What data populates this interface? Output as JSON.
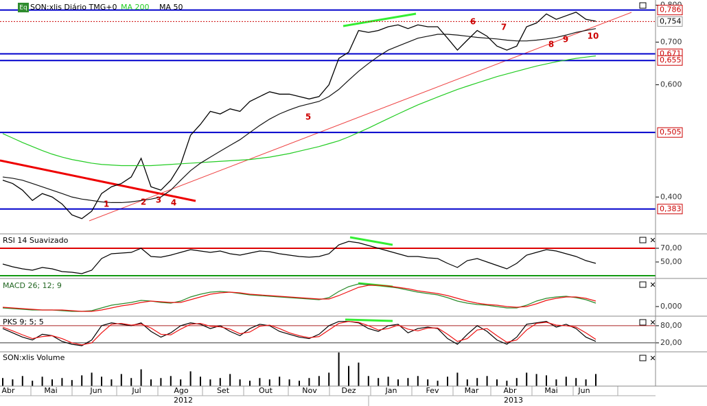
{
  "chart_data": [
    {
      "type": "line",
      "title": "SON:xlis Diário TMG+0",
      "log_scale": true,
      "ylim": [
        0.351,
        0.815
      ],
      "yticks": [
        {
          "value": 0.4,
          "label": "0,400"
        },
        {
          "value": 0.6,
          "label": "0,600"
        },
        {
          "value": 0.7,
          "label": "0,700"
        },
        {
          "value": 0.8,
          "label": "0,800"
        }
      ],
      "levels": [
        {
          "value": 0.786,
          "label": "0,786",
          "color": "#0000cc"
        },
        {
          "value": 0.754,
          "label": "0,754",
          "color": "#cc0000"
        },
        {
          "value": 0.671,
          "label": "0,671",
          "color": "#0000cc"
        },
        {
          "value": 0.655,
          "label": "0,655",
          "color": "#0000cc"
        },
        {
          "value": 0.505,
          "label": "0,505",
          "color": "#0000cc"
        },
        {
          "value": 0.383,
          "label": "0,383",
          "color": "#0000cc"
        }
      ],
      "annotations": [
        "1",
        "2",
        "3",
        "4",
        "5",
        "6",
        "7",
        "8",
        "9",
        "10"
      ],
      "series": [
        {
          "color": "#000000",
          "values": [
            0.425,
            0.42,
            0.41,
            0.395,
            0.405,
            0.4,
            0.39,
            0.375,
            0.37,
            0.38,
            0.405,
            0.415,
            0.42,
            0.43,
            0.46,
            0.415,
            0.41,
            0.425,
            0.45,
            0.5,
            0.52,
            0.545,
            0.54,
            0.55,
            0.545,
            0.565,
            0.575,
            0.585,
            0.58,
            0.58,
            0.575,
            0.57,
            0.575,
            0.6,
            0.66,
            0.675,
            0.73,
            0.725,
            0.73,
            0.74,
            0.745,
            0.735,
            0.745,
            0.74,
            0.74,
            0.71,
            0.68,
            0.705,
            0.73,
            0.715,
            0.69,
            0.68,
            0.69,
            0.74,
            0.75,
            0.775,
            0.76,
            0.77,
            0.78,
            0.76,
            0.755
          ]
        },
        {
          "name": "MA 200",
          "color": "#22cc22",
          "values": [
            0.503,
            0.495,
            0.487,
            0.48,
            0.473,
            0.467,
            0.462,
            0.458,
            0.455,
            0.452,
            0.45,
            0.449,
            0.448,
            0.448,
            0.448,
            0.448,
            0.449,
            0.45,
            0.451,
            0.452,
            0.453,
            0.454,
            0.455,
            0.456,
            0.457,
            0.458,
            0.46,
            0.462,
            0.465,
            0.468,
            0.472,
            0.476,
            0.48,
            0.485,
            0.49,
            0.497,
            0.505,
            0.513,
            0.522,
            0.531,
            0.54,
            0.549,
            0.558,
            0.566,
            0.574,
            0.582,
            0.59,
            0.597,
            0.604,
            0.611,
            0.618,
            0.624,
            0.63,
            0.636,
            0.642,
            0.647,
            0.652,
            0.656,
            0.66,
            0.663,
            0.666
          ]
        },
        {
          "name": "MA 50",
          "color": "#111111",
          "values": [
            0.43,
            0.428,
            0.425,
            0.42,
            0.415,
            0.41,
            0.405,
            0.4,
            0.397,
            0.395,
            0.393,
            0.392,
            0.392,
            0.393,
            0.395,
            0.397,
            0.4,
            0.41,
            0.425,
            0.44,
            0.452,
            0.462,
            0.472,
            0.482,
            0.492,
            0.505,
            0.518,
            0.53,
            0.54,
            0.548,
            0.555,
            0.56,
            0.565,
            0.575,
            0.59,
            0.61,
            0.63,
            0.648,
            0.665,
            0.68,
            0.69,
            0.7,
            0.71,
            0.715,
            0.72,
            0.72,
            0.718,
            0.715,
            0.712,
            0.71,
            0.708,
            0.705,
            0.703,
            0.703,
            0.705,
            0.708,
            0.712,
            0.718,
            0.725,
            0.73,
            0.735
          ]
        }
      ]
    },
    {
      "type": "line",
      "title": "RSI 14 Suavizado",
      "ylim": [
        27,
        90
      ],
      "yticks": [
        {
          "value": 70,
          "label": "70,00"
        },
        {
          "value": 50,
          "label": "50,00"
        }
      ],
      "levels": [
        {
          "value": 70,
          "color": "#dd0000"
        },
        {
          "value": 30,
          "color": "#119911"
        }
      ],
      "series": [
        {
          "color": "#000000",
          "values": [
            47,
            43,
            40,
            38,
            42,
            40,
            36,
            35,
            33,
            38,
            55,
            62,
            63,
            64,
            70,
            58,
            57,
            60,
            64,
            68,
            66,
            64,
            66,
            62,
            60,
            63,
            66,
            65,
            62,
            60,
            58,
            57,
            58,
            62,
            75,
            80,
            78,
            74,
            70,
            66,
            62,
            58,
            58,
            56,
            55,
            48,
            42,
            52,
            55,
            50,
            45,
            40,
            48,
            60,
            64,
            68,
            66,
            62,
            58,
            52,
            48
          ]
        }
      ]
    },
    {
      "type": "line",
      "title": "MACD 26; 12; 9",
      "ylim": [
        -0.013,
        0.04
      ],
      "yticks": [
        {
          "value": 0,
          "label": "0,000"
        }
      ],
      "series": [
        {
          "color": "#2a8a2a",
          "values": [
            -0.002,
            -0.003,
            -0.004,
            -0.005,
            -0.005,
            -0.005,
            -0.006,
            -0.007,
            -0.007,
            -0.006,
            -0.002,
            0.002,
            0.004,
            0.006,
            0.009,
            0.008,
            0.006,
            0.005,
            0.008,
            0.014,
            0.018,
            0.021,
            0.022,
            0.021,
            0.019,
            0.017,
            0.016,
            0.015,
            0.014,
            0.013,
            0.012,
            0.011,
            0.01,
            0.013,
            0.022,
            0.029,
            0.033,
            0.032,
            0.031,
            0.029,
            0.027,
            0.024,
            0.021,
            0.019,
            0.017,
            0.013,
            0.008,
            0.005,
            0.003,
            0.002,
            0.0,
            -0.002,
            -0.002,
            0.002,
            0.008,
            0.012,
            0.014,
            0.015,
            0.013,
            0.01,
            0.005
          ]
        },
        {
          "color": "#ee1111",
          "values": [
            -0.001,
            -0.002,
            -0.003,
            -0.004,
            -0.005,
            -0.005,
            -0.005,
            -0.006,
            -0.007,
            -0.007,
            -0.005,
            -0.002,
            0.001,
            0.003,
            0.006,
            0.008,
            0.007,
            0.006,
            0.006,
            0.01,
            0.014,
            0.018,
            0.02,
            0.021,
            0.02,
            0.018,
            0.017,
            0.016,
            0.015,
            0.014,
            0.013,
            0.012,
            0.011,
            0.011,
            0.016,
            0.022,
            0.028,
            0.031,
            0.031,
            0.03,
            0.028,
            0.026,
            0.023,
            0.021,
            0.019,
            0.016,
            0.012,
            0.008,
            0.005,
            0.003,
            0.002,
            0.0,
            -0.001,
            0.0,
            0.004,
            0.009,
            0.012,
            0.014,
            0.014,
            0.012,
            0.008
          ]
        }
      ]
    },
    {
      "type": "line",
      "title": "PKS 9; 5; 5",
      "ylim": [
        -9,
        111
      ],
      "yticks": [
        {
          "value": 80,
          "label": "80,00"
        },
        {
          "value": 20,
          "label": "20,00"
        }
      ],
      "levels": [
        {
          "value": 80,
          "color": "#aa2222"
        },
        {
          "value": 20,
          "color": "#333333"
        }
      ],
      "series": [
        {
          "color": "#000000",
          "values": [
            70,
            55,
            40,
            30,
            50,
            45,
            25,
            15,
            10,
            30,
            80,
            90,
            85,
            80,
            90,
            60,
            40,
            55,
            80,
            90,
            85,
            70,
            80,
            60,
            45,
            70,
            85,
            80,
            60,
            50,
            40,
            35,
            50,
            80,
            95,
            95,
            90,
            70,
            60,
            80,
            85,
            55,
            70,
            75,
            70,
            35,
            15,
            50,
            80,
            60,
            30,
            15,
            40,
            85,
            90,
            95,
            75,
            85,
            70,
            40,
            25
          ]
        },
        {
          "color": "#ee1111",
          "values": [
            75,
            62,
            48,
            35,
            42,
            45,
            35,
            20,
            13,
            20,
            55,
            85,
            88,
            82,
            86,
            72,
            50,
            48,
            68,
            85,
            88,
            78,
            76,
            68,
            52,
            58,
            78,
            82,
            70,
            55,
            45,
            38,
            42,
            65,
            88,
            95,
            92,
            80,
            65,
            70,
            82,
            68,
            62,
            72,
            72,
            50,
            25,
            35,
            65,
            70,
            45,
            22,
            30,
            65,
            88,
            92,
            82,
            80,
            75,
            55,
            32
          ]
        }
      ]
    },
    {
      "type": "bar",
      "title": "SON:xlis Volume",
      "ylim": [
        0,
        50
      ],
      "color": "#000000",
      "values": [
        12,
        10,
        15,
        8,
        14,
        10,
        12,
        9,
        16,
        20,
        14,
        10,
        18,
        12,
        25,
        10,
        12,
        15,
        10,
        22,
        14,
        10,
        12,
        18,
        10,
        8,
        12,
        10,
        14,
        10,
        8,
        12,
        15,
        20,
        50,
        30,
        35,
        15,
        12,
        14,
        10,
        12,
        15,
        10,
        8,
        14,
        20,
        10,
        12,
        15,
        10,
        8,
        12,
        20,
        18,
        16,
        10,
        14,
        12,
        10,
        18
      ]
    }
  ],
  "x_axis": {
    "months": [
      "Abr",
      "Mai",
      "Jun",
      "Jul",
      "Ago",
      "Set",
      "Out",
      "Nov",
      "Dez",
      "Jan",
      "Fev",
      "Mar",
      "Abr",
      "Mai",
      "Jun"
    ],
    "years": [
      "2012",
      "2013"
    ]
  }
}
